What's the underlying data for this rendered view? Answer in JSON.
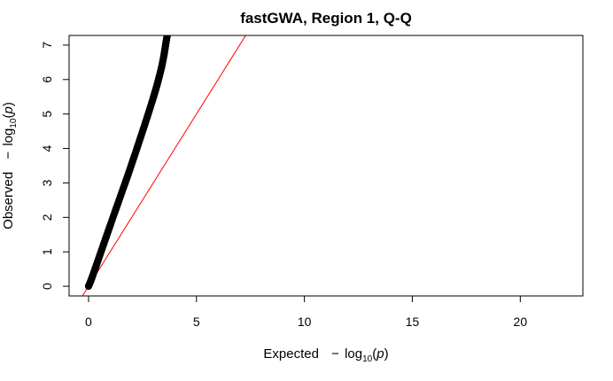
{
  "chart_data": {
    "type": "scatter",
    "title": "fastGWA, Region 1, Q-Q",
    "xlabel": {
      "prefix": "Expected",
      "minus": "−",
      "log": "log",
      "base": "10",
      "open": "(",
      "var": "p",
      "close": ")"
    },
    "ylabel": {
      "prefix": "Observed",
      "minus": "−",
      "log": "log",
      "base": "10",
      "open": "(",
      "var": "p",
      "close": ")"
    },
    "xlim": [
      -0.9,
      22.9
    ],
    "ylim": [
      -0.28,
      7.28
    ],
    "x_ticks": [
      0,
      5,
      10,
      15,
      20
    ],
    "y_ticks": [
      0,
      1,
      2,
      3,
      4,
      5,
      6,
      7
    ],
    "grid": false,
    "series": [
      {
        "color": "#000000",
        "point_style": "filled-circle",
        "x": [
          0.0,
          0.1,
          0.2,
          0.3,
          0.4,
          0.5,
          0.6,
          0.7,
          0.8,
          0.9,
          1.0,
          1.2,
          1.4,
          1.6,
          1.8,
          2.0,
          2.2,
          2.4,
          2.6,
          2.8,
          3.0,
          3.1,
          3.2,
          3.3,
          3.4,
          3.5,
          3.55,
          3.6,
          3.65
        ],
        "y": [
          0.0,
          0.15,
          0.32,
          0.5,
          0.68,
          0.86,
          1.04,
          1.22,
          1.4,
          1.58,
          1.76,
          2.12,
          2.47,
          2.83,
          3.18,
          3.55,
          3.92,
          4.3,
          4.68,
          5.07,
          5.47,
          5.68,
          5.9,
          6.14,
          6.4,
          6.72,
          6.92,
          7.12,
          7.3
        ]
      }
    ],
    "reference_line": {
      "color": "#ff0000",
      "intercept": 0,
      "slope": 1
    }
  }
}
